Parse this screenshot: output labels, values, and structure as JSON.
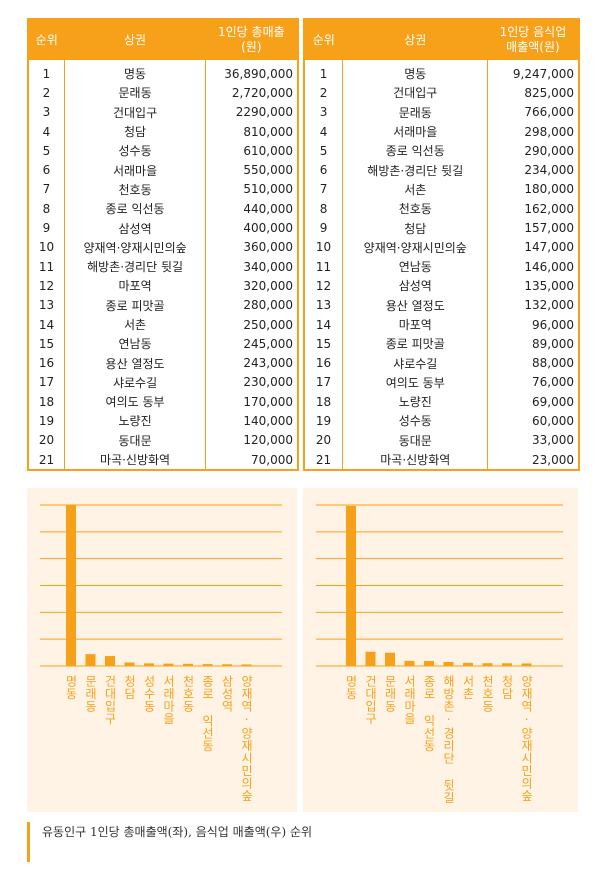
{
  "tables": [
    {
      "headers": [
        "순위",
        "상권",
        "1인당 총매출(원)"
      ],
      "rows": [
        [
          "1",
          "명동",
          "36,890,000"
        ],
        [
          "2",
          "문래동",
          "2,720,000"
        ],
        [
          "3",
          "건대입구",
          "2290,000"
        ],
        [
          "4",
          "청담",
          "810,000"
        ],
        [
          "5",
          "성수동",
          "610,000"
        ],
        [
          "6",
          "서래마을",
          "550,000"
        ],
        [
          "7",
          "천호동",
          "510,000"
        ],
        [
          "8",
          "종로 익선동",
          "440,000"
        ],
        [
          "9",
          "삼성역",
          "400,000"
        ],
        [
          "10",
          "양재역·양재시민의숲",
          "360,000"
        ],
        [
          "11",
          "해방촌·경리단 뒷길",
          "340,000"
        ],
        [
          "12",
          "마포역",
          "320,000"
        ],
        [
          "13",
          "종로 피맛골",
          "280,000"
        ],
        [
          "14",
          "서촌",
          "250,000"
        ],
        [
          "15",
          "연남동",
          "245,000"
        ],
        [
          "16",
          "용산 열정도",
          "243,000"
        ],
        [
          "17",
          "샤로수길",
          "230,000"
        ],
        [
          "18",
          "여의도 동부",
          "170,000"
        ],
        [
          "19",
          "노량진",
          "140,000"
        ],
        [
          "20",
          "동대문",
          "120,000"
        ],
        [
          "21",
          "마곡·신방화역",
          "70,000"
        ]
      ]
    },
    {
      "headers": [
        "순위",
        "상권",
        "1인당 음식업 매출액(원)"
      ],
      "rows": [
        [
          "1",
          "명동",
          "9,247,000"
        ],
        [
          "2",
          "건대입구",
          "825,000"
        ],
        [
          "3",
          "문래동",
          "766,000"
        ],
        [
          "4",
          "서래마을",
          "298,000"
        ],
        [
          "5",
          "종로 익선동",
          "290,000"
        ],
        [
          "6",
          "해방촌·경리단 뒷길",
          "234,000"
        ],
        [
          "7",
          "서촌",
          "180,000"
        ],
        [
          "8",
          "천호동",
          "162,000"
        ],
        [
          "9",
          "청담",
          "157,000"
        ],
        [
          "10",
          "양재역·양재시민의숲",
          "147,000"
        ],
        [
          "11",
          "연남동",
          "146,000"
        ],
        [
          "12",
          "삼성역",
          "135,000"
        ],
        [
          "13",
          "용산 열정도",
          "132,000"
        ],
        [
          "14",
          "마포역",
          "96,000"
        ],
        [
          "15",
          "종로 피맛골",
          "89,000"
        ],
        [
          "16",
          "샤로수길",
          "88,000"
        ],
        [
          "17",
          "여의도 동부",
          "76,000"
        ],
        [
          "18",
          "노량진",
          "69,000"
        ],
        [
          "19",
          "성수동",
          "60,000"
        ],
        [
          "20",
          "동대문",
          "33,000"
        ],
        [
          "21",
          "마곡·신방화역",
          "23,000"
        ]
      ]
    }
  ],
  "chart_data": [
    {
      "type": "bar",
      "categories": [
        "명동",
        "문래동",
        "건대입구",
        "청담",
        "성수동",
        "서래마을",
        "천호동",
        "종로 익선동",
        "삼성역",
        "양재역·양재시민의숲"
      ],
      "values": [
        36890000,
        2720000,
        2290000,
        810000,
        610000,
        550000,
        510000,
        440000,
        400000,
        360000
      ],
      "ylim": [
        0,
        37000000
      ],
      "color": "#F7A11A"
    },
    {
      "type": "bar",
      "categories": [
        "명동",
        "건대입구",
        "문래동",
        "서래마을",
        "종로 익선동",
        "해방촌·경리단 뒷길",
        "서촌",
        "천호동",
        "청담",
        "양재역·양재시민의숲"
      ],
      "values": [
        9247000,
        825000,
        766000,
        298000,
        290000,
        234000,
        180000,
        162000,
        157000,
        147000
      ],
      "ylim": [
        0,
        9300000
      ],
      "color": "#F7A11A"
    }
  ],
  "caption": "유동인구 1인당 총매출액(좌), 음식업 매출액(우) 순위"
}
